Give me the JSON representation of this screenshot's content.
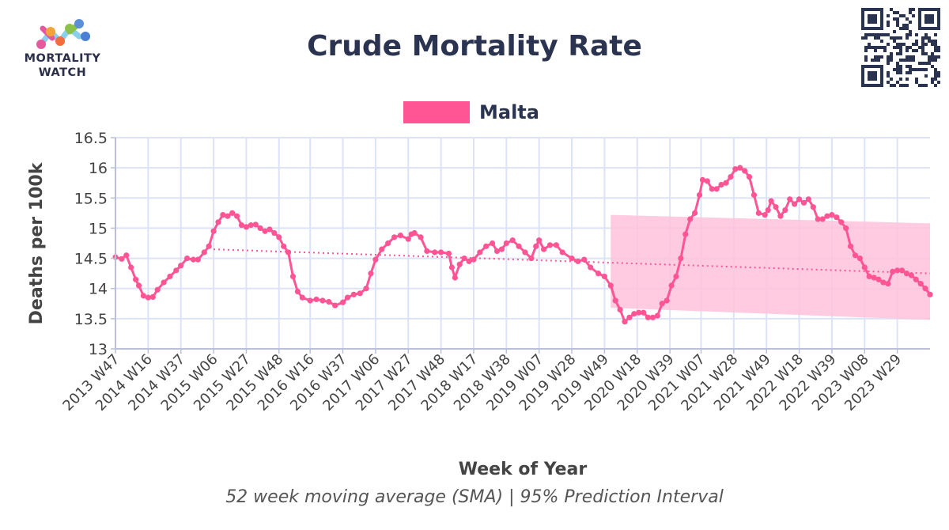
{
  "header": {
    "title": "Crude Mortality Rate",
    "logo_line1": "MORTALITY",
    "logo_line2": "WATCH"
  },
  "footnote": "52 week moving average (SMA) | 95% Prediction Interval",
  "colors": {
    "series": "#ff5595",
    "band": "#ffc2da",
    "grid": "#dde3f7",
    "axis": "#b9c0d8",
    "text": "#2a3350"
  },
  "chart_data": {
    "type": "line",
    "title": "Crude Mortality Rate",
    "xlabel": "Week of Year",
    "ylabel": "Deaths per 100k",
    "ylim": [
      13,
      16.5
    ],
    "yticks": [
      13,
      13.5,
      14,
      14.5,
      15,
      15.5,
      16,
      16.5
    ],
    "xticks": [
      "2013 W47",
      "2014 W16",
      "2014 W37",
      "2015 W06",
      "2015 W27",
      "2015 W48",
      "2016 W16",
      "2016 W37",
      "2017 W06",
      "2017 W27",
      "2017 W48",
      "2018 W17",
      "2018 W38",
      "2019 W07",
      "2019 W28",
      "2019 W49",
      "2020 W18",
      "2020 W39",
      "2021 W07",
      "2021 W28",
      "2021 W49",
      "2022 W18",
      "2022 W39",
      "2023 W08",
      "2023 W29"
    ],
    "x_start": "2013 W47",
    "x_end": "2023 W50",
    "grid": true,
    "legend_position": "top-center",
    "series": [
      {
        "name": "Malta",
        "points": [
          [
            "2013 W47",
            14.52
          ],
          [
            "2013 W51",
            14.49
          ],
          [
            "2014 W02",
            14.55
          ],
          [
            "2014 W05",
            14.35
          ],
          [
            "2014 W08",
            14.15
          ],
          [
            "2014 W10",
            14.05
          ],
          [
            "2014 W13",
            13.88
          ],
          [
            "2014 W16",
            13.85
          ],
          [
            "2014 W19",
            13.86
          ],
          [
            "2014 W22",
            13.98
          ],
          [
            "2014 W26",
            14.1
          ],
          [
            "2014 W30",
            14.2
          ],
          [
            "2014 W34",
            14.3
          ],
          [
            "2014 W37",
            14.38
          ],
          [
            "2014 W41",
            14.5
          ],
          [
            "2014 W45",
            14.48
          ],
          [
            "2014 W48",
            14.48
          ],
          [
            "2014 W52",
            14.6
          ],
          [
            "2015 W03",
            14.7
          ],
          [
            "2015 W06",
            14.95
          ],
          [
            "2015 W09",
            15.1
          ],
          [
            "2015 W12",
            15.22
          ],
          [
            "2015 W15",
            15.2
          ],
          [
            "2015 W18",
            15.25
          ],
          [
            "2015 W21",
            15.2
          ],
          [
            "2015 W24",
            15.05
          ],
          [
            "2015 W27",
            15.02
          ],
          [
            "2015 W30",
            15.05
          ],
          [
            "2015 W33",
            15.06
          ],
          [
            "2015 W36",
            15.0
          ],
          [
            "2015 W39",
            14.95
          ],
          [
            "2015 W42",
            14.98
          ],
          [
            "2015 W45",
            14.92
          ],
          [
            "2015 W48",
            14.85
          ],
          [
            "2015 W51",
            14.7
          ],
          [
            "2016 W02",
            14.6
          ],
          [
            "2016 W05",
            14.2
          ],
          [
            "2016 W08",
            13.95
          ],
          [
            "2016 W11",
            13.85
          ],
          [
            "2016 W16",
            13.8
          ],
          [
            "2016 W20",
            13.82
          ],
          [
            "2016 W24",
            13.8
          ],
          [
            "2016 W28",
            13.78
          ],
          [
            "2016 W32",
            13.72
          ],
          [
            "2016 W37",
            13.77
          ],
          [
            "2016 W40",
            13.85
          ],
          [
            "2016 W44",
            13.9
          ],
          [
            "2016 W48",
            13.92
          ],
          [
            "2016 W52",
            14.0
          ],
          [
            "2017 W03",
            14.25
          ],
          [
            "2017 W06",
            14.48
          ],
          [
            "2017 W10",
            14.65
          ],
          [
            "2017 W14",
            14.75
          ],
          [
            "2017 W18",
            14.85
          ],
          [
            "2017 W22",
            14.88
          ],
          [
            "2017 W27",
            14.82
          ],
          [
            "2017 W29",
            14.9
          ],
          [
            "2017 W31",
            14.92
          ],
          [
            "2017 W35",
            14.85
          ],
          [
            "2017 W39",
            14.62
          ],
          [
            "2017 W44",
            14.6
          ],
          [
            "2017 W48",
            14.6
          ],
          [
            "2018 W01",
            14.58
          ],
          [
            "2018 W03",
            14.35
          ],
          [
            "2018 W05",
            14.18
          ],
          [
            "2018 W08",
            14.4
          ],
          [
            "2018 W11",
            14.5
          ],
          [
            "2018 W14",
            14.45
          ],
          [
            "2018 W17",
            14.48
          ],
          [
            "2018 W21",
            14.6
          ],
          [
            "2018 W25",
            14.7
          ],
          [
            "2018 W29",
            14.75
          ],
          [
            "2018 W32",
            14.62
          ],
          [
            "2018 W35",
            14.65
          ],
          [
            "2018 W38",
            14.75
          ],
          [
            "2018 W42",
            14.8
          ],
          [
            "2018 W46",
            14.7
          ],
          [
            "2018 W50",
            14.6
          ],
          [
            "2019 W02",
            14.5
          ],
          [
            "2019 W05",
            14.7
          ],
          [
            "2019 W07",
            14.8
          ],
          [
            "2019 W10",
            14.65
          ],
          [
            "2019 W14",
            14.72
          ],
          [
            "2019 W18",
            14.72
          ],
          [
            "2019 W22",
            14.6
          ],
          [
            "2019 W28",
            14.5
          ],
          [
            "2019 W32",
            14.45
          ],
          [
            "2019 W36",
            14.48
          ],
          [
            "2019 W40",
            14.35
          ],
          [
            "2019 W45",
            14.25
          ],
          [
            "2019 W49",
            14.2
          ],
          [
            "2020 W01",
            14.05
          ],
          [
            "2020 W04",
            13.8
          ],
          [
            "2020 W07",
            13.65
          ],
          [
            "2020 W10",
            13.45
          ],
          [
            "2020 W13",
            13.52
          ],
          [
            "2020 W16",
            13.58
          ],
          [
            "2020 W19",
            13.6
          ],
          [
            "2020 W22",
            13.6
          ],
          [
            "2020 W25",
            13.52
          ],
          [
            "2020 W28",
            13.52
          ],
          [
            "2020 W31",
            13.55
          ],
          [
            "2020 W34",
            13.75
          ],
          [
            "2020 W37",
            13.8
          ],
          [
            "2020 W40",
            14.05
          ],
          [
            "2020 W43",
            14.2
          ],
          [
            "2020 W46",
            14.5
          ],
          [
            "2020 W49",
            14.9
          ],
          [
            "2020 W52",
            15.15
          ],
          [
            "2021 W03",
            15.25
          ],
          [
            "2021 W06",
            15.55
          ],
          [
            "2021 W08",
            15.8
          ],
          [
            "2021 W11",
            15.78
          ],
          [
            "2021 W14",
            15.65
          ],
          [
            "2021 W17",
            15.65
          ],
          [
            "2021 W20",
            15.72
          ],
          [
            "2021 W23",
            15.75
          ],
          [
            "2021 W26",
            15.85
          ],
          [
            "2021 W29",
            15.98
          ],
          [
            "2021 W32",
            16.0
          ],
          [
            "2021 W35",
            15.95
          ],
          [
            "2021 W38",
            15.85
          ],
          [
            "2021 W41",
            15.55
          ],
          [
            "2021 W44",
            15.25
          ],
          [
            "2021 W48",
            15.22
          ],
          [
            "2021 W50",
            15.3
          ],
          [
            "2021 W52",
            15.45
          ],
          [
            "2022 W03",
            15.35
          ],
          [
            "2022 W06",
            15.2
          ],
          [
            "2022 W09",
            15.3
          ],
          [
            "2022 W12",
            15.48
          ],
          [
            "2022 W15",
            15.4
          ],
          [
            "2022 W18",
            15.48
          ],
          [
            "2022 W21",
            15.42
          ],
          [
            "2022 W24",
            15.48
          ],
          [
            "2022 W27",
            15.35
          ],
          [
            "2022 W30",
            15.15
          ],
          [
            "2022 W33",
            15.15
          ],
          [
            "2022 W36",
            15.2
          ],
          [
            "2022 W39",
            15.22
          ],
          [
            "2022 W42",
            15.18
          ],
          [
            "2022 W45",
            15.1
          ],
          [
            "2022 W48",
            15.0
          ],
          [
            "2022 W51",
            14.7
          ],
          [
            "2023 W02",
            14.55
          ],
          [
            "2023 W05",
            14.5
          ],
          [
            "2023 W08",
            14.35
          ],
          [
            "2023 W11",
            14.2
          ],
          [
            "2023 W14",
            14.18
          ],
          [
            "2023 W17",
            14.15
          ],
          [
            "2023 W20",
            14.1
          ],
          [
            "2023 W23",
            14.08
          ],
          [
            "2023 W26",
            14.28
          ],
          [
            "2023 W29",
            14.3
          ],
          [
            "2023 W32",
            14.3
          ],
          [
            "2023 W35",
            14.25
          ],
          [
            "2023 W38",
            14.22
          ],
          [
            "2023 W41",
            14.15
          ],
          [
            "2023 W44",
            14.08
          ],
          [
            "2023 W47",
            14.0
          ],
          [
            "2023 W50",
            13.9
          ]
        ]
      }
    ],
    "baseline": [
      [
        "2015 W06",
        14.65
      ],
      [
        "2023 W50",
        14.25
      ]
    ],
    "prediction_interval": {
      "upper": [
        [
          "2020 W01",
          15.22
        ],
        [
          "2023 W50",
          15.08
        ]
      ],
      "lower": [
        [
          "2020 W01",
          13.68
        ],
        [
          "2023 W50",
          13.48
        ]
      ]
    }
  }
}
